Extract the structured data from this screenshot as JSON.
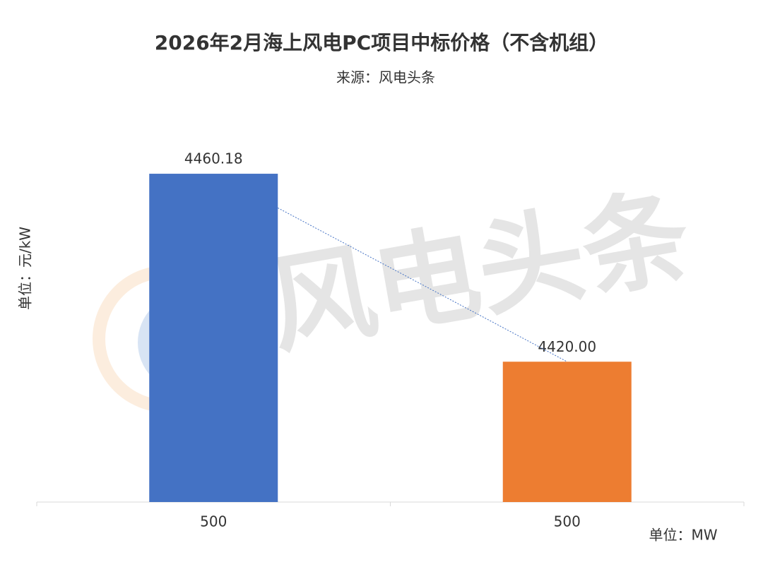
{
  "chart_data": {
    "type": "bar",
    "title": "2026年2月海上风电PC项目中标价格（不含机组）",
    "subtitle": "来源：风电头条",
    "y_label": "单位：元/kW",
    "x_label": "单位：MW",
    "watermark": "风电头条",
    "categories": [
      "500",
      "500"
    ],
    "values": [
      4460.18,
      4420.0
    ],
    "value_labels": [
      "4460.18",
      "4420.00"
    ],
    "colors": [
      "#4472c4",
      "#ed7d31"
    ],
    "ylim": [
      4390,
      4470
    ],
    "trendline": true,
    "trendline_color": "#4472c4"
  }
}
